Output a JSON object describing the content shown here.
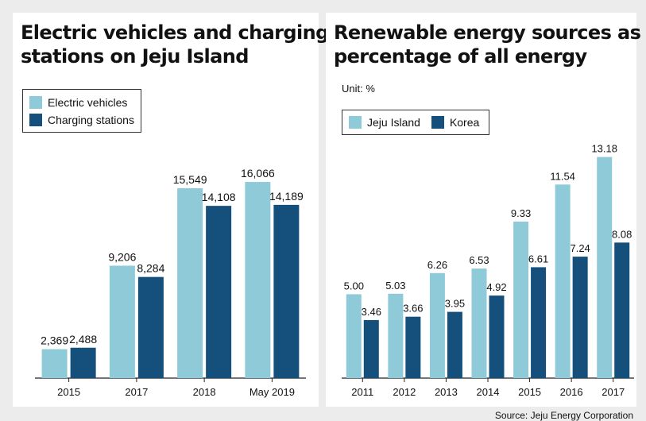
{
  "colors": {
    "light": "#8fcad8",
    "dark": "#15507c"
  },
  "chart_data": [
    {
      "type": "bar",
      "title_lines": [
        "Electric vehicles and charging",
        "stations on Jeju Island"
      ],
      "categories": [
        "2015",
        "2017",
        "2018",
        "May 2019"
      ],
      "series": [
        {
          "name": "Electric vehicles",
          "values": [
            2369,
            9206,
            15549,
            16066
          ],
          "labels": [
            "2,369",
            "9,206",
            "15,549",
            "16,066"
          ]
        },
        {
          "name": "Charging stations",
          "values": [
            2488,
            8284,
            14108,
            14189
          ],
          "labels": [
            "2,488",
            "8,284",
            "14,108",
            "14,189"
          ]
        }
      ],
      "ylim": [
        0,
        17500
      ],
      "grid": false,
      "legend": "top-left"
    },
    {
      "type": "bar",
      "title_lines": [
        "Renewable energy sources as",
        "percentage of all energy"
      ],
      "unit": "Unit: %",
      "categories": [
        "2011",
        "2012",
        "2013",
        "2014",
        "2015",
        "2016",
        "2017"
      ],
      "series": [
        {
          "name": "Jeju Island",
          "values": [
            5.0,
            5.03,
            6.26,
            6.53,
            9.33,
            11.54,
            13.18
          ],
          "labels": [
            "5.00",
            "5.03",
            "6.26",
            "6.53",
            "9.33",
            "11.54",
            "13.18"
          ]
        },
        {
          "name": "Korea",
          "values": [
            3.46,
            3.66,
            3.95,
            4.92,
            6.61,
            7.24,
            8.08
          ],
          "labels": [
            "3.46",
            "3.66",
            "3.95",
            "4.92",
            "6.61",
            "7.24",
            "8.08"
          ]
        }
      ],
      "ylim": [
        0,
        14.3
      ],
      "grid": false,
      "legend": "top-left",
      "source": "Source: Jeju Energy Corporation"
    }
  ]
}
